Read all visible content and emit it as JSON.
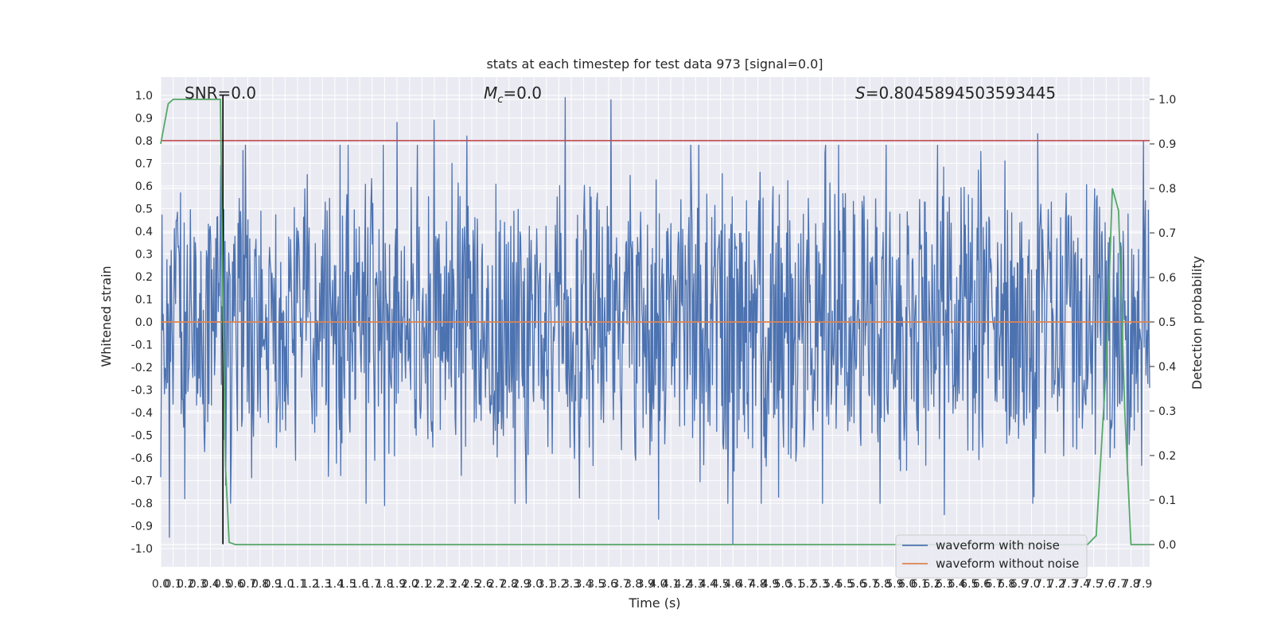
{
  "chart_data": {
    "type": "line",
    "title": "stats at each timestep for test data 973 [signal=0.0]",
    "xlabel": "Time (s)",
    "ylabel": "Whitened strain",
    "y2label": "Detection probability",
    "xlim": [
      0.0,
      7.95
    ],
    "ylim": [
      -1.08,
      1.08
    ],
    "y2lim": [
      -0.05,
      1.05
    ],
    "xticks": [
      "0.0",
      "0.1",
      "0.2",
      "0.3",
      "0.4",
      "0.5",
      "0.6",
      "0.7",
      "0.8",
      "0.9",
      "1.0",
      "1.1",
      "1.2",
      "1.3",
      "1.4",
      "1.5",
      "1.6",
      "1.7",
      "1.8",
      "1.9",
      "2.0",
      "2.1",
      "2.2",
      "2.3",
      "2.4",
      "2.5",
      "2.6",
      "2.7",
      "2.8",
      "2.9",
      "3.0",
      "3.1",
      "3.2",
      "3.3",
      "3.4",
      "3.5",
      "3.6",
      "3.7",
      "3.8",
      "3.9",
      "4.0",
      "4.1",
      "4.2",
      "4.3",
      "4.4",
      "4.5",
      "4.6",
      "4.7",
      "4.8",
      "4.9",
      "5.0",
      "5.1",
      "5.2",
      "5.3",
      "5.4",
      "5.5",
      "5.6",
      "5.7",
      "5.8",
      "5.9",
      "6.0",
      "6.1",
      "6.2",
      "6.3",
      "6.4",
      "6.5",
      "6.6",
      "6.7",
      "6.8",
      "6.9",
      "7.0",
      "7.1",
      "7.2",
      "7.3",
      "7.4",
      "7.5",
      "7.6",
      "7.7",
      "7.8",
      "7.9"
    ],
    "yticks": [
      "1.0",
      "0.9",
      "0.8",
      "0.7",
      "0.6",
      "0.5",
      "0.4",
      "0.3",
      "0.2",
      "0.1",
      "0.0",
      "-0.1",
      "-0.2",
      "-0.3",
      "-0.4",
      "-0.5",
      "-0.6",
      "-0.7",
      "-0.8",
      "-0.9",
      "-1.0"
    ],
    "y2ticks": [
      "1.0",
      "0.9",
      "0.8",
      "0.7",
      "0.6",
      "0.5",
      "0.4",
      "0.3",
      "0.2",
      "0.1",
      "0.0"
    ],
    "annotations": {
      "snr": "SNR=0.0",
      "mc_symbol": "M",
      "mc_sub": "c",
      "mc_value": "=0.0",
      "s_symbol": "S",
      "s_value": "=0.8045894503593445"
    },
    "threshold": 0.8,
    "marker_x": 0.5,
    "grid": true,
    "legend_position": "lower right",
    "series": [
      {
        "name": "waveform with noise",
        "color": "#4c72b0",
        "style": "dense noise, amplitude envelope approx. -0.98 to 0.99",
        "peaks": [
          {
            "x": 0.07,
            "y": -0.95
          },
          {
            "x": 0.48,
            "y": 0.69
          },
          {
            "x": 0.52,
            "y": -0.72
          },
          {
            "x": 1.9,
            "y": 0.88
          },
          {
            "x": 2.2,
            "y": 0.89
          },
          {
            "x": 2.46,
            "y": 0.82
          },
          {
            "x": 1.8,
            "y": -0.81
          },
          {
            "x": 3.25,
            "y": 0.99
          },
          {
            "x": 3.62,
            "y": 0.98
          },
          {
            "x": 4.6,
            "y": -0.98
          },
          {
            "x": 4.0,
            "y": -0.87
          },
          {
            "x": 7.05,
            "y": 0.83
          },
          {
            "x": 6.3,
            "y": -0.85
          },
          {
            "x": 7.9,
            "y": 0.8
          }
        ]
      },
      {
        "name": "waveform without noise",
        "color": "#dd8452",
        "style": "flat at 0.0"
      },
      {
        "name": "detection probability",
        "color": "#55a868",
        "axis": "right",
        "x": [
          0.0,
          0.06,
          0.1,
          0.2,
          0.3,
          0.4,
          0.48,
          0.5,
          0.52,
          0.55,
          0.6,
          1.0,
          2.0,
          3.0,
          4.0,
          5.0,
          6.0,
          7.0,
          7.45,
          7.52,
          7.6,
          7.65,
          7.7,
          7.75,
          7.8,
          7.95
        ],
        "y": [
          0.9,
          0.99,
          1.0,
          1.0,
          1.0,
          1.0,
          1.0,
          0.55,
          0.18,
          0.005,
          0.0,
          0.0,
          0.0,
          0.0,
          0.0,
          0.0,
          0.0,
          0.0,
          0.0,
          0.02,
          0.4,
          0.8,
          0.75,
          0.3,
          0.0,
          0.0
        ]
      }
    ]
  }
}
